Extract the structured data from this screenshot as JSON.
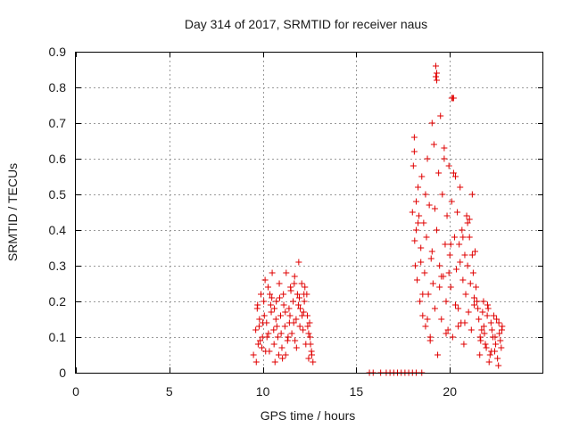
{
  "chart_data": {
    "type": "scatter",
    "title": "Day 314 of 2017, SRMTID for receiver naus",
    "xlabel": "GPS time / hours",
    "ylabel": "SRMTID / TECUs",
    "xlim": [
      0,
      25
    ],
    "ylim": [
      0,
      0.9
    ],
    "grid": true,
    "marker": "plus",
    "color": "#e00000",
    "x_ticks": [
      0,
      5,
      10,
      15,
      20
    ],
    "x_tick_labels": [
      "0",
      "5",
      "10",
      "15",
      "20"
    ],
    "y_ticks": [
      0,
      0.1,
      0.2,
      0.3,
      0.4,
      0.5,
      0.6,
      0.7,
      0.8,
      0.9
    ],
    "y_tick_labels": [
      "0",
      "0.1",
      "0.2",
      "0.3",
      "0.4",
      "0.5",
      "0.6",
      "0.7",
      "0.8",
      "0.9"
    ],
    "series": [
      {
        "name": "SRMTID",
        "x": [
          9.5,
          9.62,
          9.7,
          9.75,
          9.82,
          9.9,
          9.98,
          10.05,
          10.12,
          10.2,
          10.28,
          10.35,
          10.42,
          10.5,
          10.58,
          10.65,
          10.72,
          10.8,
          10.88,
          10.95,
          11.02,
          11.1,
          11.18,
          11.25,
          11.32,
          11.4,
          11.48,
          11.55,
          11.62,
          11.7,
          11.78,
          11.85,
          11.92,
          12.0,
          12.08,
          12.15,
          12.22,
          12.3,
          12.38,
          12.45,
          12.52,
          12.6,
          12.68,
          9.65,
          9.85,
          10.0,
          10.15,
          10.3,
          10.45,
          10.6,
          10.75,
          10.9,
          11.05,
          11.2,
          11.35,
          11.5,
          11.65,
          11.8,
          11.95,
          12.1,
          12.25,
          12.4,
          12.55,
          9.72,
          9.95,
          10.22,
          10.48,
          10.7,
          10.98,
          11.22,
          11.45,
          11.72,
          11.98,
          12.2,
          12.45,
          12.62,
          9.8,
          10.08,
          10.38,
          10.62,
          10.85,
          11.12,
          11.42,
          11.68,
          11.9,
          12.18,
          12.35,
          12.5,
          15.7,
          15.9,
          16.3,
          16.6,
          16.8,
          17.0,
          17.2,
          17.4,
          17.6,
          17.8,
          18.0,
          18.2,
          18.5,
          18.0,
          18.05,
          18.1,
          18.12,
          18.15,
          18.2,
          18.25,
          18.3,
          18.35,
          18.4,
          18.45,
          18.5,
          18.55,
          18.6,
          18.65,
          18.7,
          18.75,
          18.8,
          18.85,
          18.9,
          18.95,
          19.0,
          19.05,
          19.1,
          19.15,
          19.2,
          19.25,
          19.3,
          19.35,
          19.4,
          19.45,
          19.5,
          19.55,
          19.6,
          19.65,
          19.7,
          19.75,
          19.8,
          19.85,
          19.9,
          19.95,
          20.0,
          20.05,
          20.1,
          20.15,
          20.2,
          20.25,
          20.3,
          20.35,
          20.4,
          20.45,
          20.5,
          20.55,
          20.6,
          20.65,
          20.7,
          20.75,
          20.8,
          20.85,
          20.9,
          20.95,
          21.0,
          21.05,
          21.1,
          21.15,
          21.2,
          21.25,
          21.3,
          21.35,
          21.4,
          21.45,
          18.1,
          18.3,
          18.55,
          18.8,
          19.05,
          19.3,
          19.55,
          19.8,
          20.05,
          20.3,
          20.55,
          20.8,
          21.05,
          21.3,
          18.2,
          18.45,
          18.7,
          18.95,
          19.2,
          19.45,
          19.7,
          19.95,
          20.2,
          20.45,
          20.7,
          20.95,
          21.2,
          21.5,
          21.6,
          21.7,
          21.8,
          21.9,
          22.0,
          22.1,
          22.2,
          22.3,
          22.4,
          22.5,
          22.6,
          22.7,
          22.8,
          21.55,
          21.65,
          21.75,
          21.85,
          21.95,
          22.05,
          22.15,
          22.25,
          22.35,
          22.45,
          22.55,
          22.65,
          22.75,
          21.62,
          21.82,
          22.02,
          22.22,
          22.42,
          22.62,
          22.78,
          19.25,
          19.3,
          20.1,
          20.15
        ],
        "y": [
          0.05,
          0.12,
          0.18,
          0.08,
          0.15,
          0.22,
          0.1,
          0.2,
          0.26,
          0.14,
          0.24,
          0.06,
          0.19,
          0.28,
          0.12,
          0.03,
          0.2,
          0.1,
          0.25,
          0.16,
          0.07,
          0.22,
          0.13,
          0.28,
          0.09,
          0.18,
          0.24,
          0.11,
          0.2,
          0.27,
          0.15,
          0.22,
          0.31,
          0.18,
          0.25,
          0.12,
          0.2,
          0.08,
          0.16,
          0.04,
          0.1,
          0.06,
          0.03,
          0.03,
          0.09,
          0.14,
          0.06,
          0.11,
          0.17,
          0.08,
          0.13,
          0.21,
          0.04,
          0.17,
          0.1,
          0.23,
          0.14,
          0.07,
          0.21,
          0.16,
          0.24,
          0.13,
          0.08,
          0.19,
          0.07,
          0.1,
          0.21,
          0.15,
          0.11,
          0.05,
          0.16,
          0.09,
          0.13,
          0.22,
          0.11,
          0.05,
          0.13,
          0.16,
          0.22,
          0.18,
          0.05,
          0.19,
          0.14,
          0.25,
          0.19,
          0.17,
          0.22,
          0.14,
          0.0,
          0.0,
          0.0,
          0.0,
          0.0,
          0.0,
          0.0,
          0.0,
          0.0,
          0.0,
          0.0,
          0.0,
          0.0,
          0.45,
          0.58,
          0.62,
          0.37,
          0.3,
          0.48,
          0.26,
          0.52,
          0.44,
          0.2,
          0.35,
          0.55,
          0.16,
          0.42,
          0.28,
          0.13,
          0.38,
          0.6,
          0.22,
          0.47,
          0.09,
          0.32,
          0.7,
          0.25,
          0.64,
          0.18,
          0.86,
          0.4,
          0.05,
          0.56,
          0.3,
          0.72,
          0.15,
          0.5,
          0.27,
          0.63,
          0.36,
          0.2,
          0.44,
          0.12,
          0.58,
          0.33,
          0.24,
          0.48,
          0.1,
          0.77,
          0.38,
          0.55,
          0.29,
          0.45,
          0.18,
          0.36,
          0.52,
          0.14,
          0.4,
          0.26,
          0.08,
          0.33,
          0.22,
          0.44,
          0.3,
          0.17,
          0.38,
          0.25,
          0.12,
          0.5,
          0.28,
          0.19,
          0.34,
          0.24,
          0.2,
          0.66,
          0.42,
          0.22,
          0.15,
          0.34,
          0.82,
          0.27,
          0.11,
          0.36,
          0.19,
          0.31,
          0.14,
          0.43,
          0.21,
          0.4,
          0.31,
          0.5,
          0.1,
          0.46,
          0.24,
          0.6,
          0.28,
          0.56,
          0.13,
          0.38,
          0.42,
          0.33,
          0.18,
          0.05,
          0.12,
          0.2,
          0.08,
          0.16,
          0.03,
          0.14,
          0.1,
          0.06,
          0.15,
          0.02,
          0.09,
          0.13,
          0.15,
          0.09,
          0.17,
          0.11,
          0.07,
          0.18,
          0.05,
          0.12,
          0.16,
          0.08,
          0.04,
          0.11,
          0.07,
          0.1,
          0.13,
          0.19,
          0.06,
          0.1,
          0.14,
          0.12,
          0.83,
          0.84,
          0.77,
          0.77
        ]
      }
    ]
  }
}
